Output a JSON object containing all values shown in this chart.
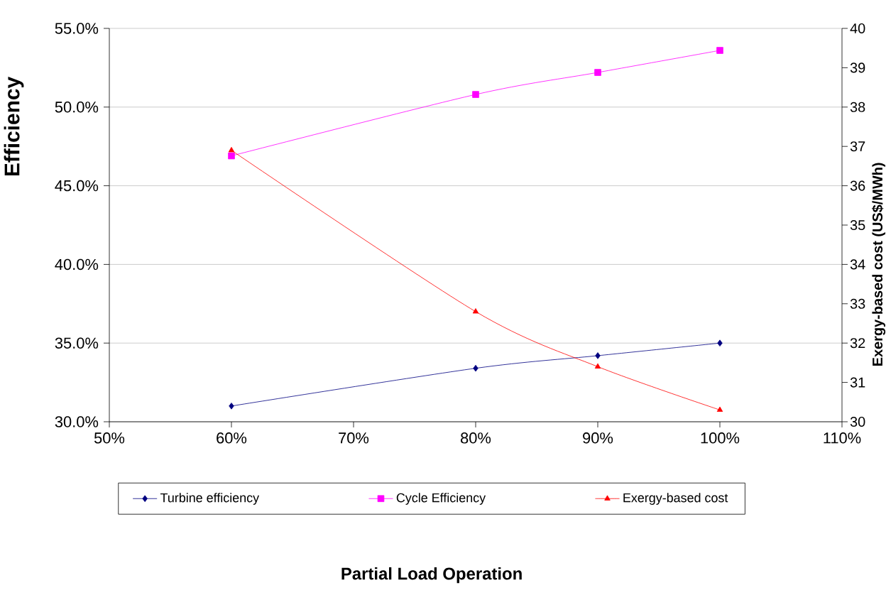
{
  "chart_data": {
    "type": "line",
    "annotations": [
      "Partial Load Operation"
    ],
    "ylabel": "Efficiency",
    "y2label": "Exergy-based cost (US$/MWh)",
    "x": [
      60,
      80,
      90,
      100
    ],
    "series": [
      {
        "name": "Turbine efficiency",
        "color": "#000080",
        "marker": "diamond",
        "values": [
          31.0,
          33.4,
          34.2,
          35.0
        ]
      },
      {
        "name": "Cycle Efficiency",
        "color": "#ff00ff",
        "marker": "square",
        "values": [
          46.9,
          50.8,
          52.2,
          53.6
        ]
      },
      {
        "name": "Exergy-based cost",
        "color": "#ff0000",
        "marker": "triangle",
        "axis": "y2",
        "values": [
          36.9,
          32.8,
          31.4,
          30.3
        ]
      }
    ],
    "xlim": [
      50,
      110
    ],
    "xticks": [
      {
        "value": 50,
        "label": "50%"
      },
      {
        "value": 60,
        "label": "60%"
      },
      {
        "value": 70,
        "label": "70%"
      },
      {
        "value": 80,
        "label": "80%"
      },
      {
        "value": 90,
        "label": "90%"
      },
      {
        "value": 100,
        "label": "100%"
      },
      {
        "value": 110,
        "label": "110%"
      }
    ],
    "ylim": [
      30,
      55
    ],
    "yticks": [
      {
        "value": 30,
        "label": "30.0%"
      },
      {
        "value": 35,
        "label": "35.0%"
      },
      {
        "value": 40,
        "label": "40.0%"
      },
      {
        "value": 45,
        "label": "45.0%"
      },
      {
        "value": 50,
        "label": "50.0%"
      },
      {
        "value": 55,
        "label": "55.0%"
      }
    ],
    "y2lim": [
      30,
      40
    ],
    "y2ticks": [
      30,
      31,
      32,
      33,
      34,
      35,
      36,
      37,
      38,
      39,
      40
    ],
    "grid": "y",
    "legend": "bottom"
  }
}
